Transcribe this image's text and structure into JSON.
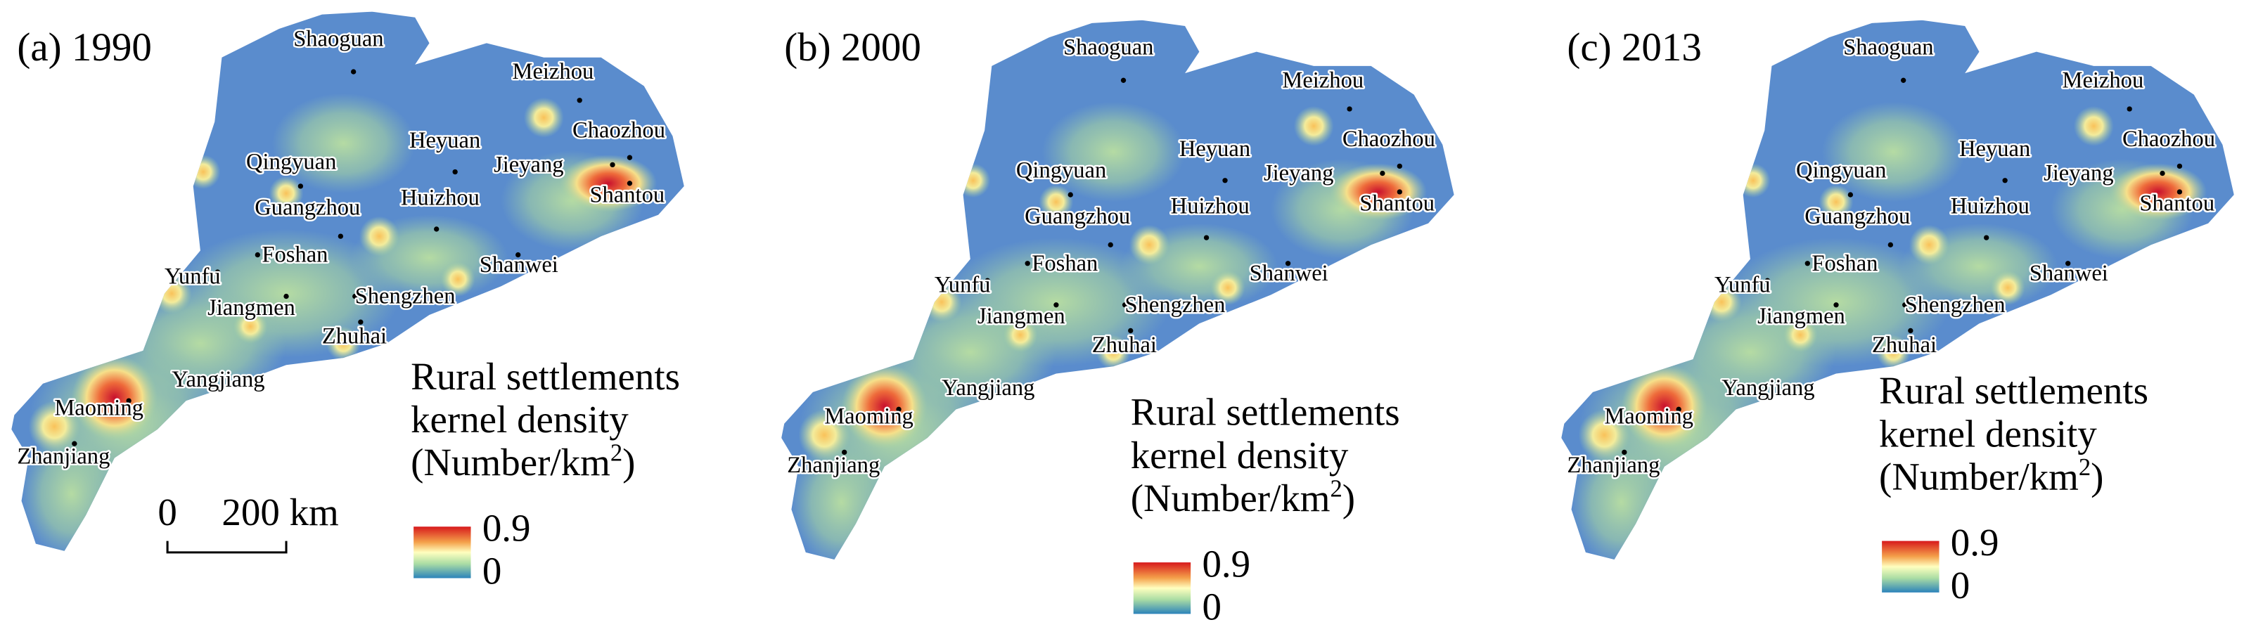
{
  "panels": [
    {
      "label": "(a) 1990",
      "cities": [
        "Shaoguan",
        "Meizhou",
        "Heyuan",
        "Chaozhou",
        "Jieyang",
        "Shantou",
        "Qingyuan",
        "Guangzhou",
        "Huizhou",
        "Foshan",
        "Yunfu",
        "Jiangmen",
        "Shengzhen",
        "Shanwei",
        "Zhuhai",
        "Yangjiang",
        "Maoming",
        "Zhanjiang"
      ],
      "legend": {
        "title": [
          "Rural settlements",
          "kernel density",
          "(Number/km",
          "2",
          ")"
        ],
        "max": "0.9",
        "min": "0"
      }
    },
    {
      "label": "(b) 2000",
      "cities": [
        "Shaoguan",
        "Meizhou",
        "Heyuan",
        "Chaozhou",
        "Jieyang",
        "Shantou",
        "Qingyuan",
        "Guangzhou",
        "Huizhou",
        "Foshan",
        "Yunfu",
        "Jiangmen",
        "Shengzhen",
        "Shanwei",
        "Zhuhai",
        "Yangjiang",
        "Maoming",
        "Zhanjiang"
      ],
      "legend": {
        "title": [
          "Rural settlements",
          "kernel density",
          "(Number/km",
          "2",
          ")"
        ],
        "max": "0.9",
        "min": "0"
      }
    },
    {
      "label": "(c) 2013",
      "cities": [
        "Shaoguan",
        "Meizhou",
        "Heyuan",
        "Chaozhou",
        "Jieyang",
        "Shantou",
        "Qingyuan",
        "Guangzhou",
        "Huizhou",
        "Foshan",
        "Yunfu",
        "Jiangmen",
        "Shengzhen",
        "Shanwei",
        "Zhuhai",
        "Yangjiang",
        "Maoming",
        "Zhanjiang"
      ],
      "legend": {
        "title": [
          "Rural settlements",
          "kernel density",
          "(Number/km",
          "2",
          ")"
        ],
        "max": "0.9",
        "min": "0"
      }
    }
  ],
  "scale_bar": {
    "start": "0",
    "end": "200 km"
  }
}
